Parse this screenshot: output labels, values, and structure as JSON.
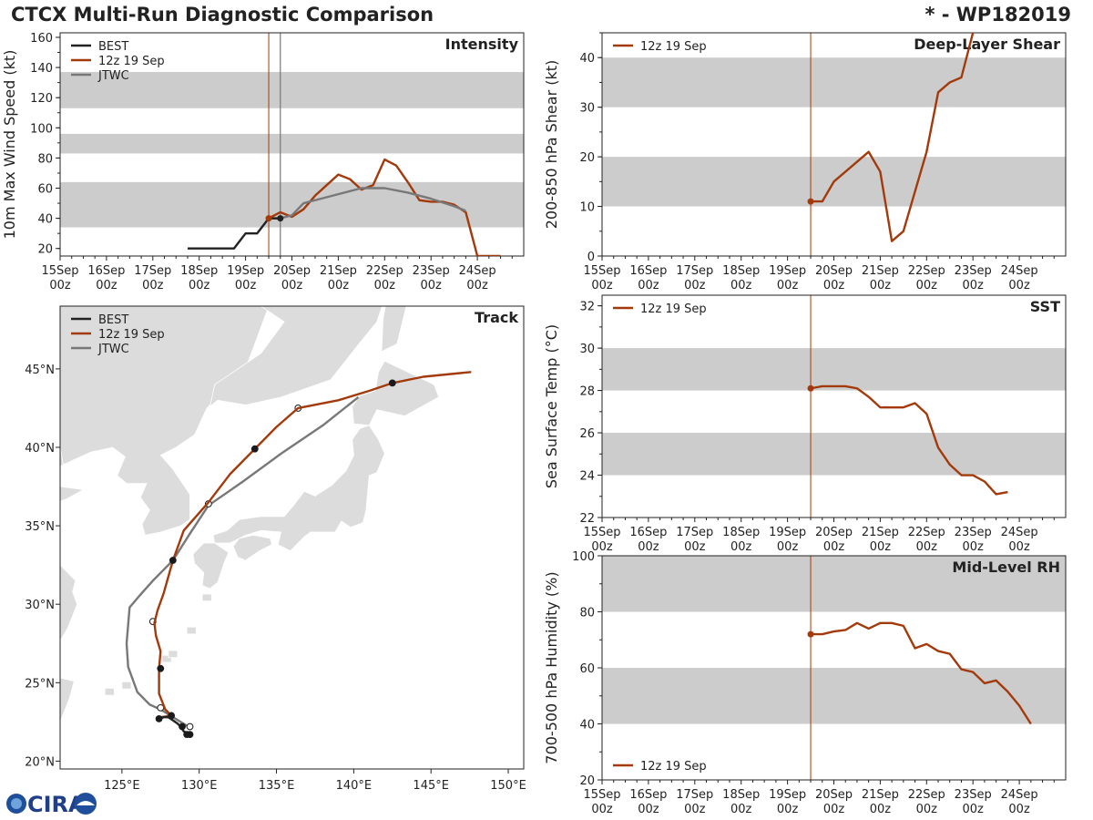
{
  "header": {
    "title": "CTCX Multi-Run Diagnostic Comparison",
    "storm_id": "* - WP182019"
  },
  "logo": {
    "text": "CIRA",
    "subtext": "NOAA"
  },
  "colors": {
    "best": "#222222",
    "run": "#a33a0c",
    "jtwc": "#787878",
    "band": "#cccccc",
    "land": "#dcdcdc",
    "land_edge": "#ffffff"
  },
  "legend": {
    "best": "BEST",
    "run": "12z 19 Sep",
    "jtwc": "JTWC"
  },
  "time_axis": {
    "ticks": [
      {
        "day": "15Sep",
        "hour": "00z"
      },
      {
        "day": "16Sep",
        "hour": "00z"
      },
      {
        "day": "17Sep",
        "hour": "00z"
      },
      {
        "day": "18Sep",
        "hour": "00z"
      },
      {
        "day": "19Sep",
        "hour": "00z"
      },
      {
        "day": "20Sep",
        "hour": "00z"
      },
      {
        "day": "21Sep",
        "hour": "00z"
      },
      {
        "day": "22Sep",
        "hour": "00z"
      },
      {
        "day": "23Sep",
        "hour": "00z"
      },
      {
        "day": "24Sep",
        "hour": "00z"
      }
    ],
    "range_days": [
      0,
      10
    ],
    "init_day": 4.5,
    "jtwc_init_day": 4.75
  },
  "chart_data": [
    {
      "id": "intensity",
      "type": "line",
      "title": "Intensity",
      "ylabel": "10m Max Wind Speed (kt)",
      "ylim": [
        15,
        163
      ],
      "yticks": [
        20,
        40,
        60,
        80,
        100,
        120,
        140,
        160
      ],
      "bands": [
        [
          34,
          64
        ],
        [
          83,
          96
        ],
        [
          113,
          137
        ]
      ],
      "series": [
        {
          "name": "BEST",
          "x": [
            2.75,
            3.0,
            3.25,
            3.5,
            3.75,
            4.0,
            4.25,
            4.5,
            4.75
          ],
          "y": [
            20,
            20,
            20,
            20,
            20,
            30,
            30,
            40,
            40
          ]
        },
        {
          "name": "12z 19 Sep",
          "x": [
            4.5,
            4.75,
            5.0,
            5.25,
            5.5,
            5.75,
            6.0,
            6.25,
            6.5,
            6.75,
            7.0,
            7.25,
            7.5,
            7.75,
            8.0,
            8.25,
            8.5,
            8.75,
            9.0,
            9.25,
            9.5
          ],
          "y": [
            40,
            44,
            41,
            46,
            55,
            62,
            69,
            66,
            59,
            62,
            79,
            75,
            64,
            52,
            51,
            51,
            49,
            44,
            15,
            15,
            15
          ]
        },
        {
          "name": "JTWC",
          "x": [
            4.75,
            5.0,
            5.25,
            5.5,
            6.0,
            6.5,
            7.0,
            7.5,
            8.0,
            8.5,
            8.75
          ],
          "y": [
            40,
            42,
            50,
            52,
            56,
            60,
            60,
            57,
            53,
            48,
            45
          ]
        }
      ]
    },
    {
      "id": "shear",
      "type": "line",
      "title": "Deep-Layer Shear",
      "ylabel": "200-850 hPa Shear (kt)",
      "ylim": [
        0,
        45
      ],
      "yticks": [
        0,
        10,
        20,
        30,
        40
      ],
      "bands": [
        [
          10,
          20
        ],
        [
          30,
          40
        ]
      ],
      "series": [
        {
          "name": "12z 19 Sep",
          "x": [
            4.5,
            4.75,
            5.0,
            5.25,
            5.5,
            5.75,
            6.0,
            6.25,
            6.5,
            6.75,
            7.0,
            7.25,
            7.5,
            7.75,
            8.0
          ],
          "y": [
            11,
            11,
            15,
            17,
            19,
            21,
            17,
            3,
            5,
            13,
            21,
            33,
            35,
            36,
            45
          ]
        }
      ]
    },
    {
      "id": "sst",
      "type": "line",
      "title": "SST",
      "ylabel": "Sea Surface Temp (°C)",
      "ylim": [
        22,
        32.5
      ],
      "yticks": [
        22,
        24,
        26,
        28,
        30,
        32
      ],
      "bands": [
        [
          24,
          26
        ],
        [
          28,
          30
        ]
      ],
      "series": [
        {
          "name": "12z 19 Sep",
          "x": [
            4.5,
            4.75,
            5.0,
            5.25,
            5.5,
            5.75,
            6.0,
            6.25,
            6.5,
            6.75,
            7.0,
            7.25,
            7.5,
            7.75,
            8.0,
            8.25,
            8.5,
            8.75
          ],
          "y": [
            28.1,
            28.2,
            28.2,
            28.2,
            28.1,
            27.7,
            27.2,
            27.2,
            27.2,
            27.4,
            26.9,
            25.3,
            24.5,
            24.0,
            24.0,
            23.7,
            23.1,
            23.2
          ]
        }
      ]
    },
    {
      "id": "rh",
      "type": "line",
      "title": "Mid-Level RH",
      "ylabel": "700-500 hPa Humidity (%)",
      "ylim": [
        20,
        100
      ],
      "yticks": [
        20,
        40,
        60,
        80,
        100
      ],
      "bands": [
        [
          40,
          60
        ],
        [
          80,
          100
        ]
      ],
      "series": [
        {
          "name": "12z 19 Sep",
          "x": [
            4.5,
            4.75,
            5.0,
            5.25,
            5.5,
            5.75,
            6.0,
            6.25,
            6.5,
            6.75,
            7.0,
            7.25,
            7.5,
            7.75,
            8.0,
            8.25,
            8.5,
            8.75,
            9.0,
            9.25
          ],
          "y": [
            72,
            72,
            73,
            73.5,
            76,
            74,
            76,
            76,
            75,
            67,
            68.5,
            66,
            65,
            59.5,
            58.5,
            54.5,
            55.5,
            51.5,
            46.5,
            40
          ]
        }
      ]
    },
    {
      "id": "track",
      "type": "scatter",
      "title": "Track",
      "xlim": [
        121,
        151
      ],
      "ylim": [
        19.5,
        49
      ],
      "xticks": [
        {
          "v": 125,
          "label": "125°E"
        },
        {
          "v": 130,
          "label": "130°E"
        },
        {
          "v": 135,
          "label": "135°E"
        },
        {
          "v": 140,
          "label": "140°E"
        },
        {
          "v": 145,
          "label": "145°E"
        },
        {
          "v": 150,
          "label": "150°E"
        }
      ],
      "yticks": [
        {
          "v": 20,
          "label": "20°N"
        },
        {
          "v": 25,
          "label": "25°N"
        },
        {
          "v": 30,
          "label": "30°N"
        },
        {
          "v": 35,
          "label": "35°N"
        },
        {
          "v": 40,
          "label": "40°N"
        },
        {
          "v": 45,
          "label": "45°N"
        }
      ],
      "series": [
        {
          "name": "BEST",
          "lon": [
            129.5,
            129.4,
            129.3,
            129.3,
            129.2,
            129.0,
            128.8,
            128.6,
            128.3,
            128.0,
            127.7,
            127.4
          ],
          "lat": [
            21.7,
            21.7,
            21.7,
            21.8,
            21.8,
            21.9,
            22.2,
            22.4,
            22.6,
            22.8,
            22.8,
            22.7
          ],
          "dots": [
            {
              "lon": 129.4,
              "lat": 21.7,
              "filled": true
            },
            {
              "lon": 129.2,
              "lat": 21.7,
              "filled": true
            },
            {
              "lon": 128.9,
              "lat": 22.2,
              "filled": true
            },
            {
              "lon": 127.4,
              "lat": 22.7,
              "filled": true
            }
          ]
        },
        {
          "name": "12z 19 Sep",
          "lon": [
            127.4,
            127.5,
            128.2,
            127.8,
            127.4,
            127.4,
            127.5,
            127.2,
            127.1,
            127.3,
            127.7,
            128.3,
            129.0,
            130.6,
            132.0,
            133.6,
            135.0,
            136.4,
            139.0,
            141.0,
            142.5,
            144.5,
            147.6
          ],
          "lat": [
            22.8,
            22.8,
            22.9,
            23.3,
            24.3,
            25.9,
            27.0,
            28.0,
            28.8,
            29.6,
            30.7,
            32.8,
            34.7,
            36.5,
            38.3,
            39.9,
            41.3,
            42.5,
            43.0,
            43.6,
            44.1,
            44.5,
            44.8
          ],
          "dots": [
            {
              "lon": 128.2,
              "lat": 22.9,
              "filled": true
            },
            {
              "lon": 127.5,
              "lat": 25.9,
              "filled": true
            },
            {
              "lon": 128.3,
              "lat": 32.8,
              "filled": true
            },
            {
              "lon": 133.6,
              "lat": 39.9,
              "filled": true
            },
            {
              "lon": 142.5,
              "lat": 44.1,
              "filled": true
            }
          ]
        },
        {
          "name": "JTWC",
          "lon": [
            129.3,
            128.8,
            128.3,
            127.5,
            126.8,
            126.0,
            125.4,
            125.3,
            125.5,
            126.1,
            127.0,
            128.3,
            129.4,
            130.6,
            132.8,
            135.3,
            138.0,
            140.3
          ],
          "lat": [
            22.2,
            22.5,
            22.8,
            23.3,
            23.6,
            24.4,
            26.0,
            27.5,
            29.8,
            30.5,
            31.5,
            32.8,
            34.5,
            36.3,
            37.8,
            39.6,
            41.4,
            43.2
          ],
          "dots": [
            {
              "lon": 129.4,
              "lat": 22.2,
              "filled": false
            },
            {
              "lon": 127.5,
              "lat": 23.4,
              "filled": false
            },
            {
              "lon": 127.0,
              "lat": 28.9,
              "filled": false
            },
            {
              "lon": 130.6,
              "lat": 36.4,
              "filled": false
            },
            {
              "lon": 136.4,
              "lat": 42.5,
              "filled": false
            }
          ]
        }
      ]
    }
  ]
}
